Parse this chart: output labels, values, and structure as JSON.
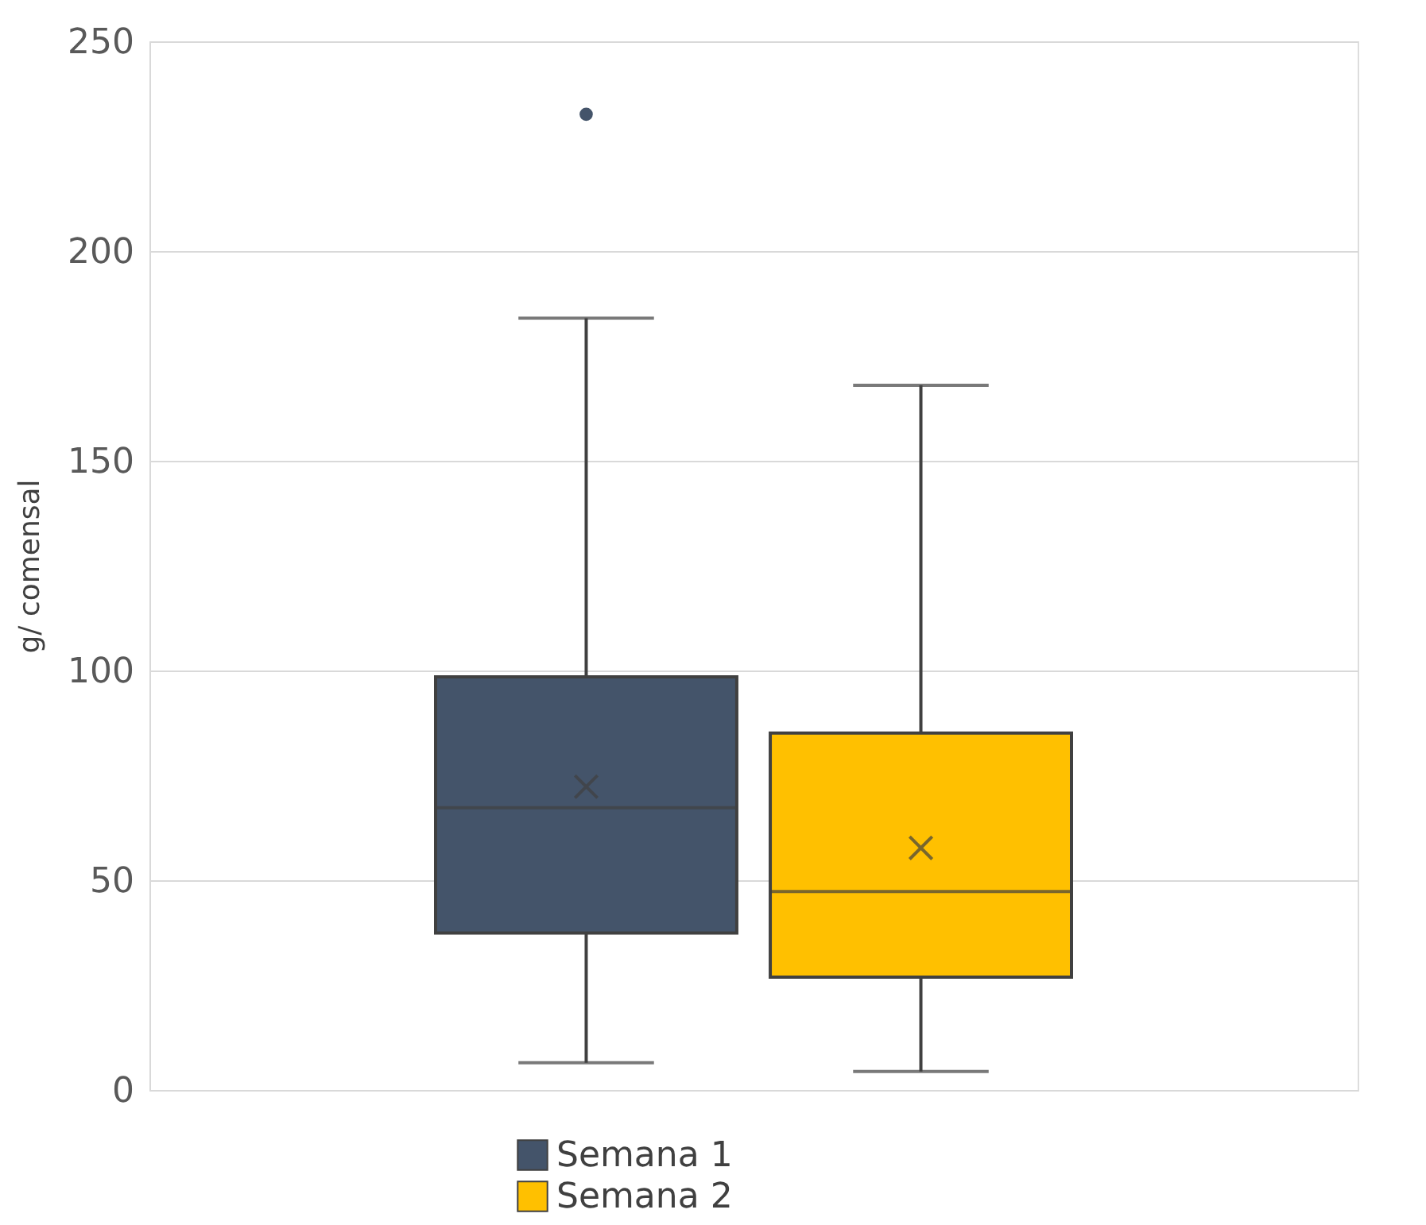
{
  "chart_data": {
    "type": "box",
    "ylabel": "g/ comensal",
    "categories": [
      null
    ],
    "series": [
      {
        "name": "Semana 1",
        "color": "#44546a",
        "boxes": [
          {
            "low": 6.5,
            "q1": 37.4,
            "median": 67.3,
            "q3": 98.5,
            "high": 184,
            "mean": 72.3,
            "outliers": [
              232.6
            ]
          }
        ]
      },
      {
        "name": "Semana 2",
        "color": "#ffc000",
        "boxes": [
          {
            "low": 4.4,
            "q1": 26.9,
            "median": 47.3,
            "q3": 85.1,
            "high": 168,
            "mean": 57.7
          }
        ]
      }
    ],
    "ylim": [
      0,
      250
    ],
    "yticks": [
      0,
      50,
      100,
      150,
      200,
      250
    ],
    "grid": "y",
    "legend": "bottom",
    "tick_labels": "y",
    "marker": "cross"
  }
}
